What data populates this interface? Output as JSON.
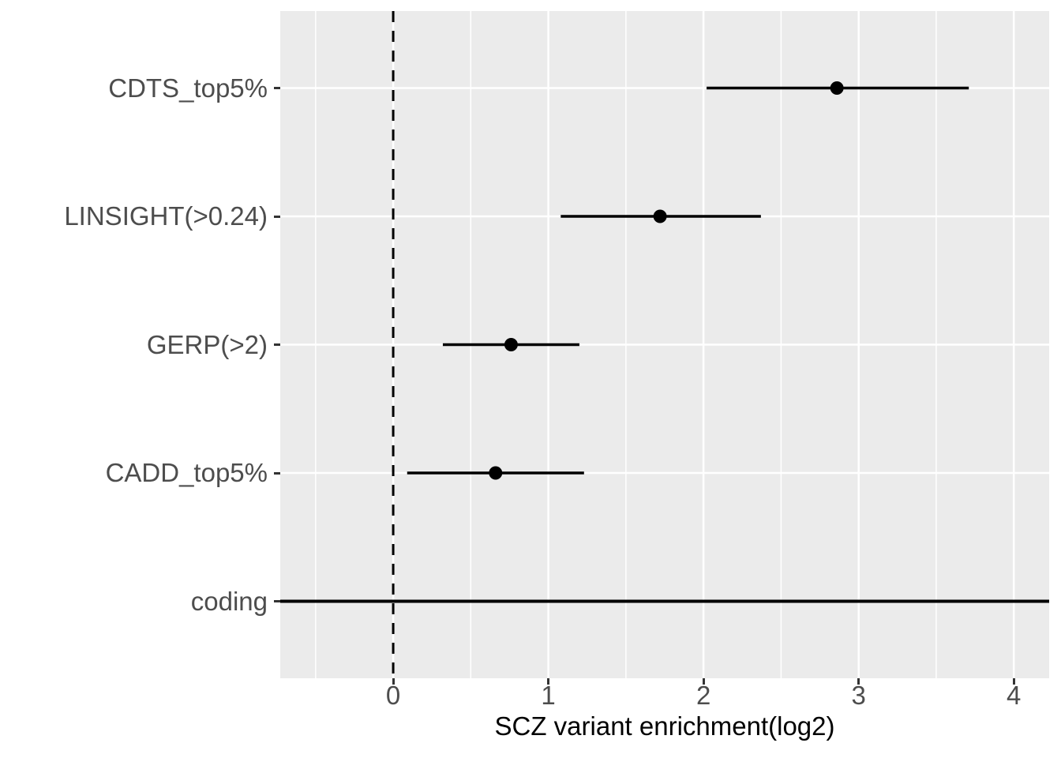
{
  "chart_data": {
    "type": "scatter",
    "subtype": "forest-pointrange",
    "title": "",
    "xlabel": "SCZ variant enrichment(log2)",
    "ylabel": "",
    "categories": [
      "CDTS_top5%",
      "LINSIGHT(>0.24)",
      "GERP(>2)",
      "CADD_top5%",
      "coding"
    ],
    "series": [
      {
        "name": "CDTS_top5%",
        "estimate": 2.86,
        "ci_low": 2.02,
        "ci_high": 3.71,
        "point": true,
        "full_span": false
      },
      {
        "name": "LINSIGHT(>0.24)",
        "estimate": 1.72,
        "ci_low": 1.08,
        "ci_high": 2.37,
        "point": true,
        "full_span": false
      },
      {
        "name": "GERP(>2)",
        "estimate": 0.76,
        "ci_low": 0.32,
        "ci_high": 1.2,
        "point": true,
        "full_span": false
      },
      {
        "name": "CADD_top5%",
        "estimate": 0.66,
        "ci_low": 0.09,
        "ci_high": 1.23,
        "point": true,
        "full_span": false
      },
      {
        "name": "coding",
        "estimate": 0.0,
        "ci_low": null,
        "ci_high": null,
        "point": false,
        "full_span": true
      }
    ],
    "x_ticks": [
      0,
      1,
      2,
      3,
      4
    ],
    "x_tick_labels": [
      "0",
      "1",
      "2",
      "3",
      "4"
    ],
    "x_minor_ticks": [
      -0.5,
      0.5,
      1.5,
      2.5,
      3.5
    ],
    "xlim": [
      -0.728,
      4.228
    ],
    "reference_line_x": 0,
    "grid": true,
    "legend": "none",
    "colors": {
      "panel_bg": "#EBEBEB",
      "grid": "#FFFFFF",
      "data": "#000000",
      "axis_text": "#4D4D4D",
      "axis_title": "#000000",
      "tick_mark": "#333333",
      "background": "#FFFFFF"
    }
  }
}
